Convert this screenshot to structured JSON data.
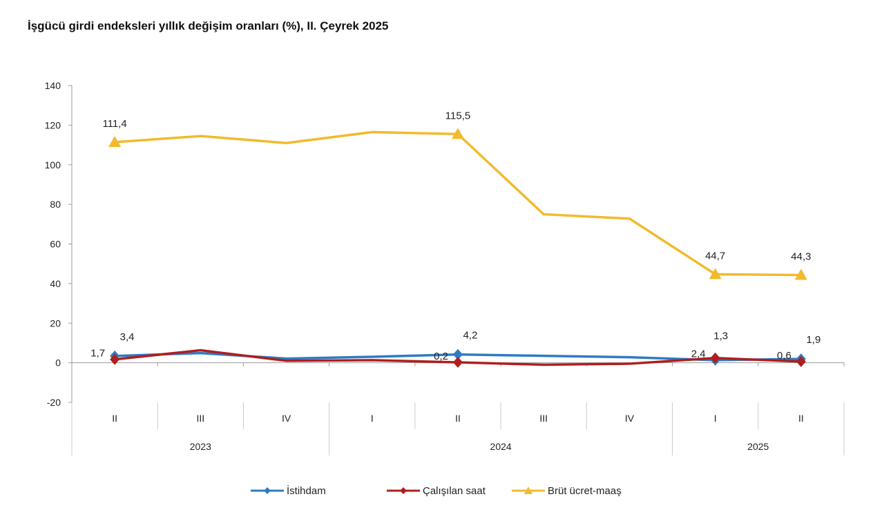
{
  "chart_data": {
    "type": "line",
    "title": "İşgücü girdi endeksleri yıllık değişim oranları (%), II. Çeyrek 2025",
    "quarters": [
      "II",
      "III",
      "IV",
      "I",
      "II",
      "III",
      "IV",
      "I",
      "II"
    ],
    "years": [
      {
        "label": "2023",
        "span": 3
      },
      {
        "label": "2024",
        "span": 4
      },
      {
        "label": "2025",
        "span": 2
      }
    ],
    "ylim": [
      -20,
      140
    ],
    "yticks": [
      -20,
      0,
      20,
      40,
      60,
      80,
      100,
      120,
      140
    ],
    "grid": false,
    "legend": "bottom",
    "series": [
      {
        "name": "İstihdam",
        "color": "#2E7BC4",
        "marker": "diamond",
        "values": [
          3.4,
          4.9,
          2.1,
          3.0,
          4.2,
          3.5,
          2.8,
          1.3,
          1.9
        ],
        "labels": {
          "0": "3,4",
          "4": "4,2",
          "7": "1,3",
          "8": "1,9"
        }
      },
      {
        "name": "Çalışılan saat",
        "color": "#B01E1E",
        "marker": "diamond",
        "values": [
          1.7,
          6.3,
          1.0,
          1.3,
          0.2,
          -1.0,
          -0.5,
          2.4,
          0.6
        ],
        "labels": {
          "0": "1,7",
          "4": "0,2",
          "7": "2,4",
          "8": "0,6"
        }
      },
      {
        "name": "Brüt ücret-maaş",
        "color": "#F2BA2C",
        "marker": "triangle",
        "values": [
          111.4,
          114.5,
          111.0,
          116.5,
          115.5,
          75.0,
          72.8,
          44.7,
          44.3
        ],
        "labels": {
          "0": "111,4",
          "4": "115,5",
          "7": "44,7",
          "8": "44,3"
        }
      }
    ]
  }
}
